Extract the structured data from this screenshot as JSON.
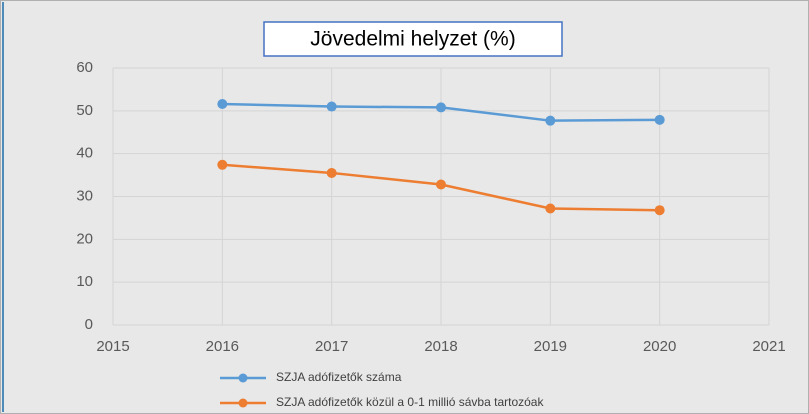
{
  "chart_data": {
    "type": "line",
    "title": "Jövedelmi helyzet (%)",
    "x": [
      2016,
      2017,
      2018,
      2019,
      2020
    ],
    "series": [
      {
        "name": "SZJA adófizetők száma",
        "color": "#5b9bd5",
        "values": [
          51.6,
          51.0,
          50.8,
          47.7,
          47.9
        ]
      },
      {
        "name": "SZJA adófizetők közül a 0-1 millió sávba tartozóak",
        "color": "#ed7d31",
        "values": [
          37.4,
          35.5,
          32.8,
          27.2,
          26.8
        ]
      }
    ],
    "xlim": [
      2015,
      2021
    ],
    "xticks": [
      2015,
      2016,
      2017,
      2018,
      2019,
      2020,
      2021
    ],
    "ylim": [
      0,
      60
    ],
    "yticks": [
      0,
      10,
      20,
      30,
      40,
      50,
      60
    ],
    "grid": true
  }
}
